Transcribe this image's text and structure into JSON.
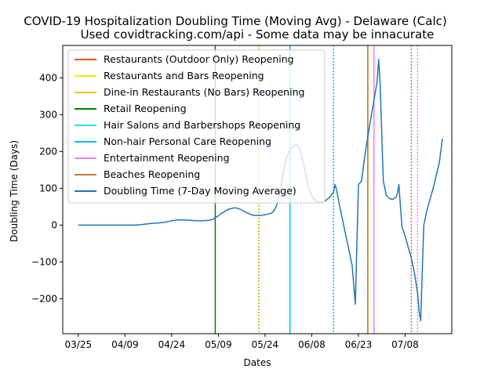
{
  "chart_data": {
    "type": "line",
    "title": "COVID-19 Hospitalization Doubling Time (Moving Avg) - Delaware (Calc)",
    "subtitle": "Used covidtracking.com/api - Some data may be innacurate",
    "xlabel": "Dates",
    "ylabel": "Doubling Time (Days)",
    "x_ticks": [
      "03/25",
      "04/09",
      "04/24",
      "05/09",
      "05/24",
      "06/08",
      "06/23",
      "07/08"
    ],
    "x_tick_days": [
      0,
      15,
      30,
      45,
      60,
      75,
      90,
      105
    ],
    "xlim_days": [
      -5,
      120
    ],
    "ylim": [
      -295,
      488
    ],
    "y_ticks": [
      -200,
      -100,
      0,
      100,
      200,
      300,
      400
    ],
    "legend_position": "upper-left",
    "vlines": [
      {
        "name": "Restaurants (Outdoor Only) Reopening",
        "color": "#e8501f",
        "style": "solid",
        "day": 93
      },
      {
        "name": "Restaurants and Bars Reopening",
        "color": "#f0f000",
        "style": "solid",
        "day": 93
      },
      {
        "name": "Dine-in Restaurants (No Bars) Reopening",
        "color": "#ecc31a",
        "style": "solid",
        "day": 93
      },
      {
        "name": "Retail Reopening",
        "color": "#008000",
        "style": "solid",
        "day": 44
      },
      {
        "name": "Hair Salons and Barbershops Reopening",
        "color": "#1ae6e6",
        "style": "solid",
        "day": 68
      },
      {
        "name": "Non-hair Personal Care Reopening",
        "color": "#00bfff",
        "style": "solid",
        "day": 68
      },
      {
        "name": "Entertainment Reopening",
        "color": "#ee82ee",
        "style": "solid",
        "day": 95
      },
      {
        "name": "Beaches Reopening",
        "color": "#c87b3b",
        "style": "solid",
        "day": 93
      }
    ],
    "dotted_vlines": [
      {
        "day": 58,
        "color": "#008000"
      },
      {
        "day": 58,
        "color": "#ecc31a"
      },
      {
        "day": 82,
        "color": "#1ae6e6"
      },
      {
        "day": 82,
        "color": "#00bfff"
      },
      {
        "day": 107,
        "color": "#c87b3b"
      },
      {
        "day": 109,
        "color": "#ee82ee"
      }
    ],
    "series": [
      {
        "name": "Doubling Time (7-Day Moving Average)",
        "color": "#1f77b4",
        "x": [
          0,
          4,
          8,
          12,
          14,
          16,
          18,
          20,
          22,
          24,
          26,
          28,
          30,
          32,
          34,
          36,
          38,
          40,
          42,
          43,
          44,
          45,
          46,
          48,
          50,
          51,
          52,
          54,
          56,
          58,
          60,
          62,
          63,
          64,
          65,
          66,
          67,
          68,
          69,
          70,
          71,
          72,
          73,
          74,
          75,
          76,
          77,
          78,
          79,
          80,
          81,
          82,
          82.5,
          83,
          84,
          86,
          88,
          89,
          90,
          91,
          92,
          93,
          94,
          95,
          96,
          96.5,
          97,
          98,
          99,
          100,
          101,
          102,
          102.5,
          103,
          104,
          105,
          106,
          107,
          108,
          109,
          109.5,
          110,
          111,
          112,
          113,
          114,
          116,
          117
        ],
        "y": [
          0,
          0,
          0,
          0,
          0,
          0,
          0,
          1,
          3,
          5,
          6,
          8,
          12,
          14,
          14,
          13,
          12,
          12,
          13,
          15,
          20,
          25,
          32,
          42,
          47,
          46,
          43,
          34,
          27,
          26,
          28,
          32,
          40,
          60,
          100,
          150,
          185,
          205,
          215,
          218,
          210,
          180,
          140,
          100,
          80,
          68,
          62,
          62,
          64,
          70,
          78,
          90,
          110,
          95,
          50,
          -30,
          -110,
          -215,
          110,
          120,
          185,
          240,
          290,
          340,
          390,
          450,
          380,
          120,
          80,
          72,
          70,
          75,
          85,
          110,
          -5,
          -30,
          -60,
          -90,
          -130,
          -185,
          -235,
          -260,
          0,
          40,
          70,
          100,
          170,
          235
        ]
      }
    ]
  }
}
